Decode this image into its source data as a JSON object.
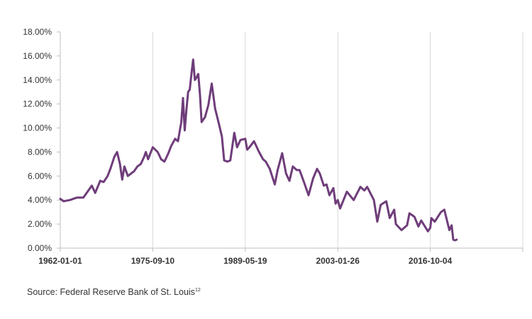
{
  "chart_data": {
    "type": "line",
    "title": "",
    "xlabel": "",
    "ylabel": "",
    "x_tick_labels": [
      "1962-01-01",
      "1975-09-10",
      "1989-05-19",
      "2003-01-26",
      "2016-10-04"
    ],
    "x_tick_dates": [
      "1962-01-01",
      "1975-09-10",
      "1989-05-19",
      "2003-01-26",
      "2016-10-04"
    ],
    "xlim": [
      "1962-01-01",
      "2030-06-13"
    ],
    "y_tick_labels": [
      "0.00%",
      "2.00%",
      "4.00%",
      "6.00%",
      "8.00%",
      "10.00%",
      "12.00%",
      "14.00%",
      "16.00%",
      "18.00%"
    ],
    "ylim": [
      0,
      18
    ],
    "y_unit": "%",
    "grid": "vertical",
    "legend": "none",
    "series": [
      {
        "color": "#6f3d7a",
        "points": [
          [
            "1962-01-01",
            4.1
          ],
          [
            "1962-07-01",
            3.9
          ],
          [
            "1963-06-01",
            4.0
          ],
          [
            "1964-06-01",
            4.2
          ],
          [
            "1965-06-01",
            4.2
          ],
          [
            "1966-03-01",
            4.8
          ],
          [
            "1966-09-01",
            5.2
          ],
          [
            "1967-03-01",
            4.6
          ],
          [
            "1967-12-01",
            5.6
          ],
          [
            "1968-06-01",
            5.5
          ],
          [
            "1969-01-01",
            6.0
          ],
          [
            "1969-06-01",
            6.6
          ],
          [
            "1970-01-01",
            7.6
          ],
          [
            "1970-06-01",
            8.0
          ],
          [
            "1970-11-01",
            7.0
          ],
          [
            "1971-03-01",
            5.7
          ],
          [
            "1971-07-01",
            6.8
          ],
          [
            "1972-01-01",
            6.0
          ],
          [
            "1972-12-01",
            6.4
          ],
          [
            "1973-06-01",
            6.8
          ],
          [
            "1973-12-01",
            7.0
          ],
          [
            "1974-06-01",
            7.6
          ],
          [
            "1974-09-01",
            8.0
          ],
          [
            "1975-01-01",
            7.4
          ],
          [
            "1975-09-10",
            8.4
          ],
          [
            "1976-06-01",
            8.0
          ],
          [
            "1976-12-01",
            7.4
          ],
          [
            "1977-06-01",
            7.2
          ],
          [
            "1978-01-01",
            7.9
          ],
          [
            "1978-06-01",
            8.5
          ],
          [
            "1979-01-01",
            9.1
          ],
          [
            "1979-06-01",
            8.9
          ],
          [
            "1979-12-01",
            10.5
          ],
          [
            "1980-03-01",
            12.5
          ],
          [
            "1980-06-01",
            9.8
          ],
          [
            "1980-09-01",
            11.5
          ],
          [
            "1980-12-01",
            13.0
          ],
          [
            "1981-03-01",
            13.2
          ],
          [
            "1981-06-01",
            14.5
          ],
          [
            "1981-09-01",
            15.7
          ],
          [
            "1981-12-01",
            14.0
          ],
          [
            "1982-03-01",
            14.2
          ],
          [
            "1982-06-01",
            14.5
          ],
          [
            "1982-09-01",
            12.8
          ],
          [
            "1982-12-01",
            10.5
          ],
          [
            "1983-06-01",
            10.9
          ],
          [
            "1983-12-01",
            11.9
          ],
          [
            "1984-06-01",
            13.7
          ],
          [
            "1984-12-01",
            11.6
          ],
          [
            "1985-06-01",
            10.5
          ],
          [
            "1985-12-01",
            9.3
          ],
          [
            "1986-04-01",
            7.3
          ],
          [
            "1986-10-01",
            7.2
          ],
          [
            "1987-03-01",
            7.3
          ],
          [
            "1987-10-01",
            9.6
          ],
          [
            "1988-03-01",
            8.4
          ],
          [
            "1988-09-01",
            9.0
          ],
          [
            "1989-05-19",
            9.1
          ],
          [
            "1989-09-01",
            8.2
          ],
          [
            "1990-01-01",
            8.4
          ],
          [
            "1990-09-01",
            8.9
          ],
          [
            "1991-06-01",
            8.0
          ],
          [
            "1992-01-01",
            7.4
          ],
          [
            "1992-06-01",
            7.2
          ],
          [
            "1993-01-01",
            6.6
          ],
          [
            "1993-10-01",
            5.3
          ],
          [
            "1994-03-01",
            6.5
          ],
          [
            "1994-11-01",
            7.9
          ],
          [
            "1995-06-01",
            6.2
          ],
          [
            "1995-12-01",
            5.6
          ],
          [
            "1996-06-01",
            6.8
          ],
          [
            "1997-01-01",
            6.5
          ],
          [
            "1997-06-01",
            6.5
          ],
          [
            "1998-01-01",
            5.6
          ],
          [
            "1998-10-01",
            4.4
          ],
          [
            "1999-06-01",
            5.8
          ],
          [
            "2000-01-01",
            6.6
          ],
          [
            "2000-06-01",
            6.2
          ],
          [
            "2001-01-01",
            5.2
          ],
          [
            "2001-06-01",
            5.3
          ],
          [
            "2001-11-01",
            4.4
          ],
          [
            "2002-06-01",
            5.0
          ],
          [
            "2002-10-01",
            3.7
          ],
          [
            "2003-01-26",
            4.0
          ],
          [
            "2003-06-01",
            3.3
          ],
          [
            "2004-06-01",
            4.7
          ],
          [
            "2005-06-01",
            4.0
          ],
          [
            "2006-06-01",
            5.1
          ],
          [
            "2007-01-01",
            4.8
          ],
          [
            "2007-06-01",
            5.1
          ],
          [
            "2008-06-01",
            4.0
          ],
          [
            "2008-12-01",
            2.2
          ],
          [
            "2009-06-01",
            3.6
          ],
          [
            "2010-04-01",
            3.9
          ],
          [
            "2010-10-01",
            2.5
          ],
          [
            "2011-06-01",
            3.2
          ],
          [
            "2011-09-01",
            2.0
          ],
          [
            "2012-07-01",
            1.5
          ],
          [
            "2013-05-01",
            1.9
          ],
          [
            "2013-09-01",
            2.9
          ],
          [
            "2014-06-01",
            2.6
          ],
          [
            "2015-01-01",
            1.8
          ],
          [
            "2015-06-01",
            2.3
          ],
          [
            "2016-06-01",
            1.4
          ],
          [
            "2016-10-04",
            1.7
          ],
          [
            "2016-12-01",
            2.5
          ],
          [
            "2017-06-01",
            2.2
          ],
          [
            "2018-05-01",
            3.0
          ],
          [
            "2018-11-01",
            3.2
          ],
          [
            "2019-08-01",
            1.5
          ],
          [
            "2019-12-01",
            1.9
          ],
          [
            "2020-03-01",
            0.7
          ],
          [
            "2020-06-01",
            0.65
          ],
          [
            "2020-09-01",
            0.7
          ]
        ]
      }
    ]
  },
  "footer": {
    "source_text": "Source: Federal Reserve Bank of St. Louis",
    "source_superscript": "12"
  }
}
